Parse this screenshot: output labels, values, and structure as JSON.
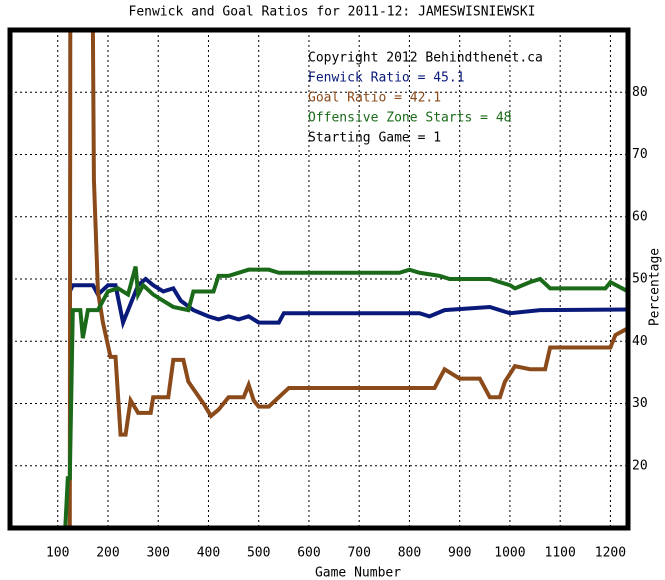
{
  "chart_data": {
    "type": "line",
    "title": "Fenwick and Goal Ratios for 2011-12: JAMESWISNIEWSKI",
    "x_label": "Game Number",
    "y_label": "Percentage",
    "annotations": [
      "Copyright 2012 Behindthenet.ca",
      "Starting Game = 1"
    ],
    "xlim": [
      5,
      1235
    ],
    "ylim": [
      10,
      90
    ],
    "xticks": [
      100,
      200,
      300,
      400,
      500,
      600,
      700,
      800,
      900,
      1000,
      1100,
      1200
    ],
    "yticks": [
      20,
      30,
      40,
      50,
      60,
      70,
      80
    ],
    "grid": true,
    "series": [
      {
        "name": "Fenwick Ratio = 45.1",
        "color": "#0a1a7a",
        "x": [
          124,
          130,
          170,
          180,
          200,
          215,
          230,
          245,
          260,
          275,
          290,
          310,
          330,
          345,
          370,
          400,
          420,
          440,
          460,
          480,
          500,
          540,
          550,
          820,
          840,
          870,
          960,
          1000,
          1060,
          1235
        ],
        "values": [
          48,
          49,
          49,
          47.5,
          49,
          49,
          43,
          46,
          49,
          50,
          49,
          48,
          48.5,
          46.5,
          45,
          44,
          43.5,
          44,
          43.5,
          44,
          43,
          43,
          44.5,
          44.5,
          44,
          45,
          45.5,
          44.5,
          45,
          45.1
        ]
      },
      {
        "name": "Goal Ratio = 42.1",
        "color": "#8b4a1a",
        "x": [
          124,
          125,
          170,
          172,
          180,
          190,
          205,
          215,
          225,
          235,
          245,
          260,
          285,
          290,
          320,
          330,
          350,
          360,
          390,
          405,
          420,
          440,
          470,
          480,
          490,
          500,
          520,
          540,
          560,
          850,
          870,
          900,
          940,
          960,
          980,
          990,
          1010,
          1040,
          1070,
          1080,
          1200,
          1210,
          1235
        ],
        "values": [
          10,
          90,
          90,
          66,
          48,
          43,
          37.5,
          37.5,
          25,
          25,
          30.5,
          28.5,
          28.5,
          31,
          31,
          37,
          37,
          33.5,
          30,
          28,
          29,
          31,
          31,
          33,
          30.5,
          29.5,
          29.5,
          31,
          32.5,
          32.5,
          35.5,
          34,
          34,
          31,
          31,
          33.5,
          36,
          35.5,
          35.5,
          39,
          39,
          41,
          42.1
        ]
      },
      {
        "name": "Offensive Zone Starts = 48",
        "color": "#1a6a1a",
        "x": [
          115,
          120,
          124,
          130,
          145,
          150,
          160,
          180,
          200,
          220,
          240,
          255,
          260,
          270,
          290,
          310,
          330,
          360,
          370,
          410,
          420,
          440,
          480,
          520,
          540,
          780,
          800,
          820,
          860,
          880,
          960,
          980,
          1000,
          1010,
          1040,
          1060,
          1080,
          1190,
          1200,
          1235
        ],
        "values": [
          10,
          18,
          18,
          45,
          45,
          40.5,
          45,
          45,
          48,
          48.5,
          47.5,
          52,
          47.5,
          49,
          47.5,
          46.5,
          45.5,
          45,
          48,
          48,
          50.5,
          50.5,
          51.5,
          51.5,
          51,
          51,
          51.5,
          51,
          50.5,
          50,
          50,
          49.5,
          49,
          48.5,
          49.5,
          50,
          48.5,
          48.5,
          49.5,
          48
        ]
      }
    ]
  }
}
